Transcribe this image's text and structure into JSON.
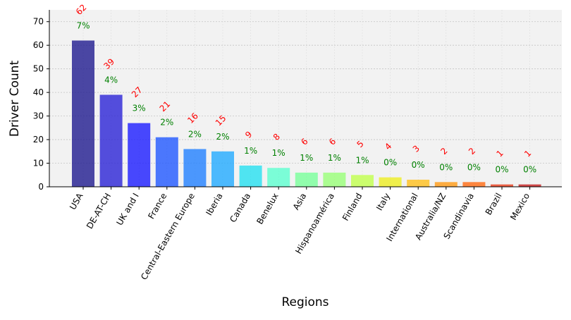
{
  "chart_data": {
    "type": "bar",
    "title": "",
    "xlabel": "Regions",
    "ylabel": "Driver Count",
    "ylim": [
      0,
      75
    ],
    "yticks": [
      0,
      10,
      20,
      30,
      40,
      50,
      60,
      70
    ],
    "grid": true,
    "legend": "none",
    "categories": [
      "USA",
      "DE-AT-CH",
      "UK and I",
      "France",
      "Central-Eastern Europe",
      "Iberia",
      "Canada",
      "Benelux",
      "Asia",
      "Hispanoamérica",
      "Finland",
      "Italy",
      "International",
      "Australia/NZ",
      "Scandinavia",
      "Brazil",
      "Mexico"
    ],
    "values": [
      62,
      39,
      27,
      21,
      16,
      15,
      9,
      8,
      6,
      6,
      5,
      4,
      3,
      2,
      2,
      1,
      1
    ],
    "percent_labels": [
      "7%",
      "4%",
      "3%",
      "2%",
      "2%",
      "2%",
      "1%",
      "1%",
      "1%",
      "1%",
      "1%",
      "0%",
      "0%",
      "0%",
      "0%",
      "0%",
      "0%"
    ],
    "bar_colors": [
      "#1f1a8f",
      "#2a23d6",
      "#1c1cff",
      "#2158ff",
      "#2080ff",
      "#22aaff",
      "#26e0f0",
      "#5cffd0",
      "#78ff9a",
      "#98ff78",
      "#c0ff4c",
      "#eeee22",
      "#ffbf1c",
      "#ff9a14",
      "#ff6a12",
      "#e83c1a",
      "#c41e1e"
    ],
    "count_label_color": "#ff0000",
    "percent_label_color": "#008000",
    "background_color": "#f2f2f2"
  }
}
